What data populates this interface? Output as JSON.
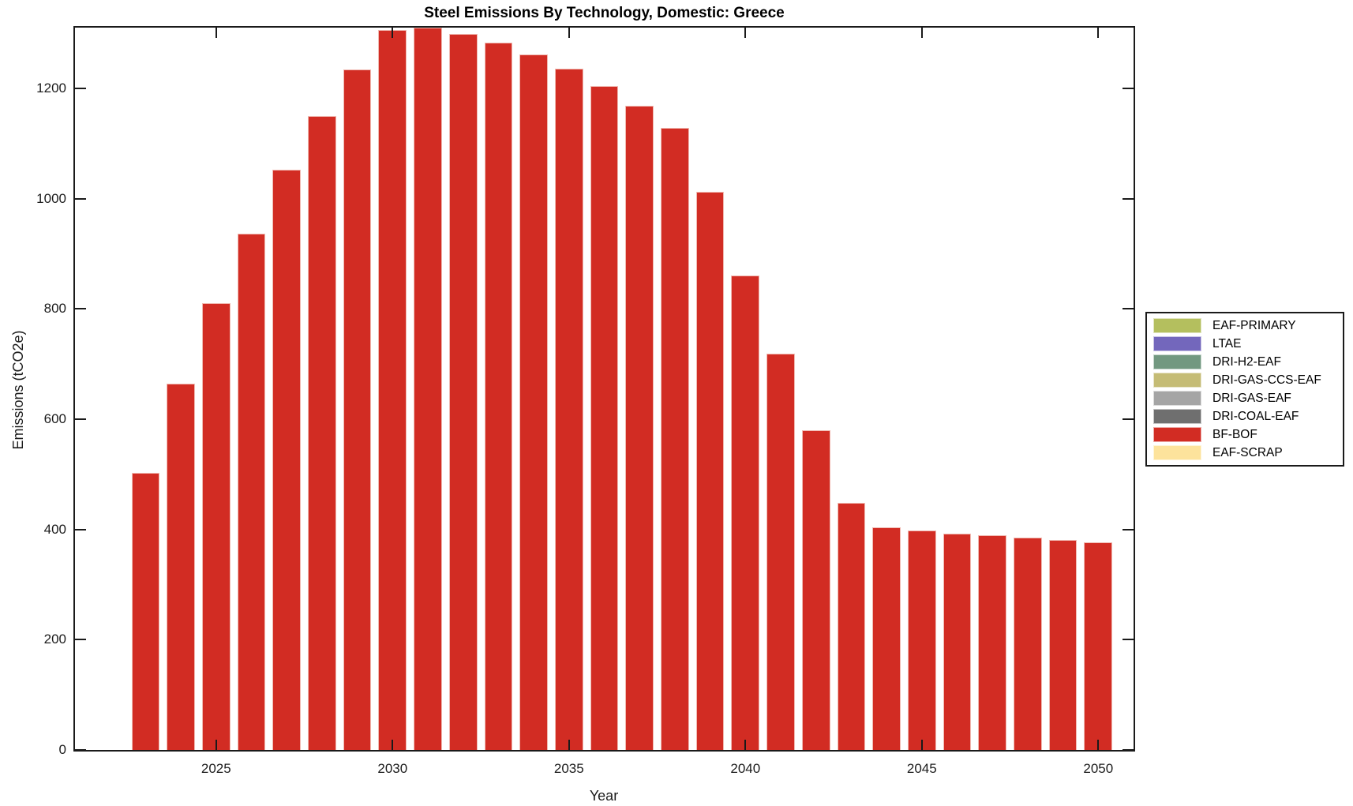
{
  "figure": {
    "background": "#ffffff",
    "axis_color": "#1a1a1a",
    "text_color": "#1c1c1c"
  },
  "chart_data": {
    "type": "bar",
    "title": "Steel Emissions By Technology, Domestic: Greece",
    "xlabel": "Year",
    "ylabel": "Emissions (tCO2e)",
    "xlim": [
      2021,
      2051
    ],
    "ylim": [
      0,
      1310
    ],
    "xticks": [
      2025,
      2030,
      2035,
      2040,
      2045,
      2050
    ],
    "yticks": [
      0,
      200,
      400,
      600,
      800,
      1000,
      1200
    ],
    "grid": false,
    "legend_position": "right-outside",
    "bar_width_fraction": 0.8,
    "bar_edge_color": "#f0b9b1",
    "x": [
      2023,
      2024,
      2025,
      2026,
      2027,
      2028,
      2029,
      2030,
      2031,
      2032,
      2033,
      2034,
      2035,
      2036,
      2037,
      2038,
      2039,
      2040,
      2041,
      2042,
      2043,
      2044,
      2045,
      2046,
      2047,
      2048,
      2049,
      2050
    ],
    "series": [
      {
        "name": "BF-BOF",
        "values": [
          503,
          664,
          810,
          936,
          1052,
          1150,
          1234,
          1305,
          1310,
          1299,
          1283,
          1261,
          1235,
          1204,
          1168,
          1128,
          1012,
          861,
          718,
          580,
          448,
          404,
          398,
          392,
          389,
          385,
          381,
          377
        ]
      }
    ],
    "legend": [
      {
        "label": "EAF-PRIMARY",
        "color": "#b4bf5e"
      },
      {
        "label": "LTAE",
        "color": "#7367bc"
      },
      {
        "label": "DRI-H2-EAF",
        "color": "#729880"
      },
      {
        "label": "DRI-GAS-CCS-EAF",
        "color": "#c5bc75"
      },
      {
        "label": "DRI-GAS-EAF",
        "color": "#a5a5a5"
      },
      {
        "label": "DRI-COAL-EAF",
        "color": "#6f6f6f"
      },
      {
        "label": "BF-BOF",
        "color": "#d22c23"
      },
      {
        "label": "EAF-SCRAP",
        "color": "#fde39c"
      }
    ]
  }
}
